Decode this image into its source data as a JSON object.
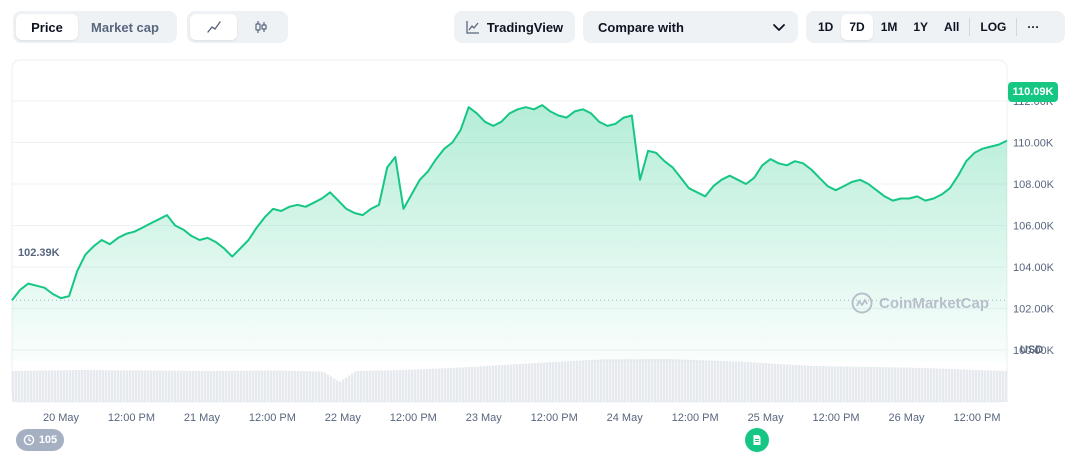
{
  "toolbar": {
    "type_tabs": [
      {
        "label": "Price",
        "active": true
      },
      {
        "label": "Market cap",
        "active": false
      }
    ],
    "chart_style": [
      {
        "icon": "line-chart-icon",
        "active": true
      },
      {
        "icon": "candlestick-icon",
        "active": false
      }
    ],
    "tradingview_label": "TradingView",
    "compare_label": "Compare with",
    "ranges": [
      {
        "label": "1D",
        "active": false
      },
      {
        "label": "7D",
        "active": true
      },
      {
        "label": "1M",
        "active": false
      },
      {
        "label": "1Y",
        "active": false
      },
      {
        "label": "All",
        "active": false
      }
    ],
    "log_label": "LOG",
    "more_label": "···"
  },
  "current_price_label": "110.09K",
  "start_price_label": "102.39K",
  "currency_label": "USD",
  "watermark_text": "CoinMarketCap",
  "history_count": "105",
  "colors": {
    "accent_green": "#16c784",
    "axis_text": "#58667e",
    "panel_bg": "#eff2f5"
  },
  "chart_data": {
    "type": "area",
    "x_tick_labels": [
      "20 May",
      "12:00 PM",
      "21 May",
      "12:00 PM",
      "22 May",
      "12:00 PM",
      "23 May",
      "12:00 PM",
      "24 May",
      "12:00 PM",
      "25 May",
      "12:00 PM",
      "26 May",
      "12:00 PM"
    ],
    "y_tick_labels": [
      "112.00K",
      "110.00K",
      "108.00K",
      "106.00K",
      "104.00K",
      "102.00K",
      "100.00K"
    ],
    "ylim": [
      98000,
      114000
    ],
    "x_unit": "hours since first point",
    "points": [
      [
        0,
        102400
      ],
      [
        1,
        102900
      ],
      [
        2,
        103200
      ],
      [
        3,
        103100
      ],
      [
        4,
        103000
      ],
      [
        5,
        102700
      ],
      [
        6,
        102500
      ],
      [
        7,
        102600
      ],
      [
        8,
        103800
      ],
      [
        9,
        104600
      ],
      [
        10,
        105000
      ],
      [
        11,
        105300
      ],
      [
        12,
        105100
      ],
      [
        13,
        105400
      ],
      [
        14,
        105600
      ],
      [
        15,
        105700
      ],
      [
        16,
        105900
      ],
      [
        17,
        106100
      ],
      [
        18,
        106300
      ],
      [
        19,
        106500
      ],
      [
        20,
        106000
      ],
      [
        21,
        105800
      ],
      [
        22,
        105500
      ],
      [
        23,
        105300
      ],
      [
        24,
        105400
      ],
      [
        25,
        105200
      ],
      [
        26,
        104900
      ],
      [
        27,
        104500
      ],
      [
        28,
        104900
      ],
      [
        29,
        105300
      ],
      [
        30,
        105900
      ],
      [
        31,
        106400
      ],
      [
        32,
        106800
      ],
      [
        33,
        106700
      ],
      [
        34,
        106900
      ],
      [
        35,
        107000
      ],
      [
        36,
        106900
      ],
      [
        37,
        107100
      ],
      [
        38,
        107300
      ],
      [
        39,
        107600
      ],
      [
        40,
        107200
      ],
      [
        41,
        106800
      ],
      [
        42,
        106600
      ],
      [
        43,
        106500
      ],
      [
        44,
        106800
      ],
      [
        45,
        107000
      ],
      [
        46,
        108800
      ],
      [
        47,
        109300
      ],
      [
        48,
        106800
      ],
      [
        49,
        107500
      ],
      [
        50,
        108200
      ],
      [
        51,
        108600
      ],
      [
        52,
        109200
      ],
      [
        53,
        109700
      ],
      [
        54,
        110000
      ],
      [
        55,
        110600
      ],
      [
        56,
        111700
      ],
      [
        57,
        111400
      ],
      [
        58,
        111000
      ],
      [
        59,
        110800
      ],
      [
        60,
        111000
      ],
      [
        61,
        111400
      ],
      [
        62,
        111600
      ],
      [
        63,
        111700
      ],
      [
        64,
        111600
      ],
      [
        65,
        111800
      ],
      [
        66,
        111500
      ],
      [
        67,
        111300
      ],
      [
        68,
        111200
      ],
      [
        69,
        111500
      ],
      [
        70,
        111600
      ],
      [
        71,
        111400
      ],
      [
        72,
        111000
      ],
      [
        73,
        110800
      ],
      [
        74,
        110900
      ],
      [
        75,
        111200
      ],
      [
        76,
        111300
      ],
      [
        77,
        108200
      ],
      [
        78,
        109600
      ],
      [
        79,
        109500
      ],
      [
        80,
        109100
      ],
      [
        81,
        108800
      ],
      [
        82,
        108300
      ],
      [
        83,
        107800
      ],
      [
        84,
        107600
      ],
      [
        85,
        107400
      ],
      [
        86,
        107900
      ],
      [
        87,
        108200
      ],
      [
        88,
        108400
      ],
      [
        89,
        108200
      ],
      [
        90,
        108000
      ],
      [
        91,
        108300
      ],
      [
        92,
        108900
      ],
      [
        93,
        109200
      ],
      [
        94,
        109000
      ],
      [
        95,
        108900
      ],
      [
        96,
        109100
      ],
      [
        97,
        109000
      ],
      [
        98,
        108700
      ],
      [
        99,
        108300
      ],
      [
        100,
        107900
      ],
      [
        101,
        107700
      ],
      [
        102,
        107900
      ],
      [
        103,
        108100
      ],
      [
        104,
        108200
      ],
      [
        105,
        108000
      ],
      [
        106,
        107700
      ],
      [
        107,
        107400
      ],
      [
        108,
        107200
      ],
      [
        109,
        107300
      ],
      [
        110,
        107300
      ],
      [
        111,
        107400
      ],
      [
        112,
        107200
      ],
      [
        113,
        107300
      ],
      [
        114,
        107500
      ],
      [
        115,
        107800
      ],
      [
        116,
        108400
      ],
      [
        117,
        109100
      ],
      [
        118,
        109500
      ],
      [
        119,
        109700
      ],
      [
        120,
        109800
      ],
      [
        121,
        109900
      ],
      [
        122,
        110090
      ]
    ],
    "volume": [
      [
        0,
        0.62
      ],
      [
        8,
        0.64
      ],
      [
        16,
        0.63
      ],
      [
        24,
        0.62
      ],
      [
        32,
        0.63
      ],
      [
        38,
        0.61
      ],
      [
        40,
        0.4
      ],
      [
        42,
        0.62
      ],
      [
        48,
        0.64
      ],
      [
        56,
        0.7
      ],
      [
        64,
        0.78
      ],
      [
        72,
        0.85
      ],
      [
        80,
        0.86
      ],
      [
        90,
        0.8
      ],
      [
        98,
        0.72
      ],
      [
        106,
        0.7
      ],
      [
        112,
        0.68
      ],
      [
        118,
        0.64
      ],
      [
        122,
        0.62
      ]
    ]
  }
}
